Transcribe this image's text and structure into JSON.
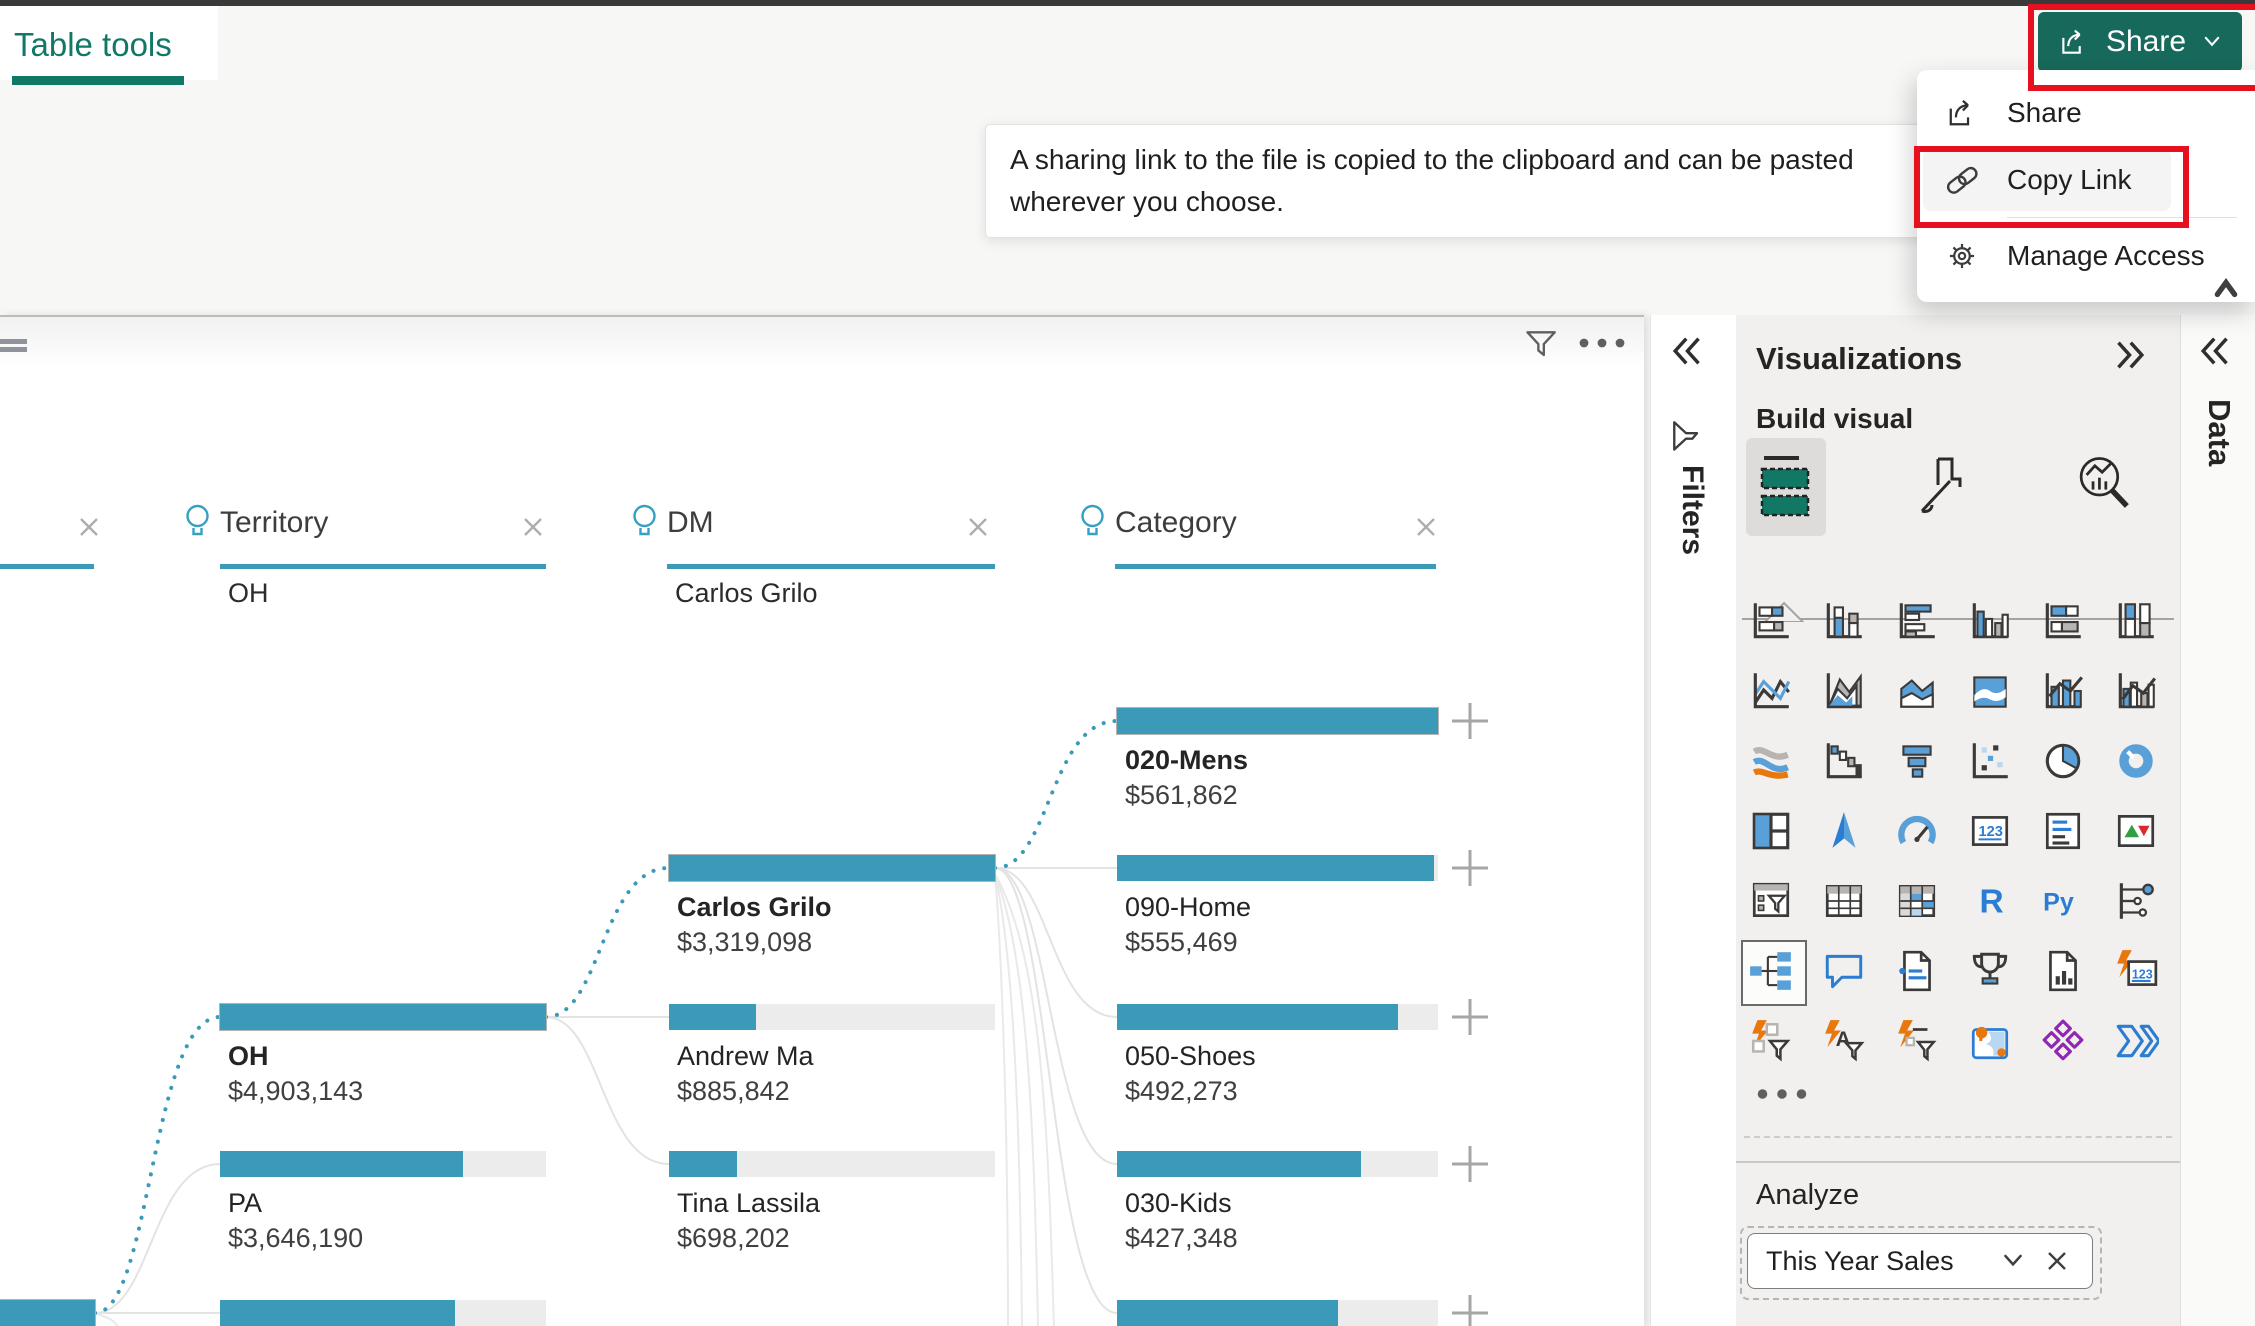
{
  "top_bar": {
    "active_tab": "Table tools"
  },
  "share": {
    "button_label": "Share",
    "menu_items": [
      {
        "icon": "share-icon",
        "label": "Share"
      },
      {
        "icon": "link-icon",
        "label": "Copy Link"
      },
      {
        "icon": "gear-icon",
        "label": "Manage Access"
      }
    ]
  },
  "tooltip": {
    "text": "A sharing link to the file is copied to the clipboard and can be pasted wherever you choose."
  },
  "colors": {
    "brand_green": "#117865",
    "accent_teal": "#3a9ab7",
    "annotation_red": "#e6101f",
    "bar_track": "#ececec"
  },
  "decomposition_tree": {
    "levels": [
      {
        "label": "Territory",
        "selected_value": "OH"
      },
      {
        "label": "DM",
        "selected_value": "Carlos Grilo"
      },
      {
        "label": "Category",
        "selected_value": ""
      }
    ],
    "root": {
      "label": "",
      "value": "",
      "fill": 1,
      "selected": true
    },
    "columns": [
      {
        "name": "territory",
        "nodes": [
          {
            "label": "OH",
            "value": "$4,903,143",
            "fill": 1,
            "selected": true
          },
          {
            "label": "PA",
            "value": "$3,646,190",
            "fill": 0.744,
            "selected": false
          },
          {
            "label": "",
            "value": "",
            "fill": 0.72,
            "selected": false
          }
        ]
      },
      {
        "name": "dm",
        "nodes": [
          {
            "label": "Carlos Grilo",
            "value": "$3,319,098",
            "fill": 1,
            "selected": true
          },
          {
            "label": "Andrew Ma",
            "value": "$885,842",
            "fill": 0.267,
            "selected": false
          },
          {
            "label": "Tina Lassila",
            "value": "$698,202",
            "fill": 0.21,
            "selected": false
          }
        ]
      },
      {
        "name": "category",
        "nodes": [
          {
            "label": "020-Mens",
            "value": "$561,862",
            "fill": 1,
            "selected": true
          },
          {
            "label": "090-Home",
            "value": "$555,469",
            "fill": 0.989,
            "selected": false
          },
          {
            "label": "050-Shoes",
            "value": "$492,273",
            "fill": 0.876,
            "selected": false
          },
          {
            "label": "030-Kids",
            "value": "$427,348",
            "fill": 0.76,
            "selected": false
          },
          {
            "label": "",
            "value": "",
            "fill": 0.69,
            "selected": false
          }
        ]
      }
    ]
  },
  "panels": {
    "filters_title": "Filters",
    "data_title": "Data",
    "visualizations": {
      "title": "Visualizations",
      "build_section": "Build visual",
      "analyze_section": "Analyze",
      "field_value": "This Year Sales",
      "selected_visual": "decomposition-tree",
      "icon_names": [
        "stacked-bar-chart",
        "stacked-column-chart",
        "clustered-bar-chart",
        "clustered-column-chart",
        "hundred-stacked-bar-chart",
        "hundred-stacked-column-chart",
        "line-chart",
        "area-chart",
        "stacked-area-chart",
        "hundred-stacked-area-chart",
        "line-and-stacked-column-chart",
        "line-and-clustered-column-chart",
        "ribbon-chart",
        "waterfall-chart",
        "funnel-chart",
        "scatter-chart",
        "pie-chart",
        "donut-chart",
        "treemap",
        "map",
        "gauge",
        "card",
        "multi-row-card",
        "kpi",
        "slicer",
        "table",
        "matrix",
        "r-script-visual",
        "python-visual",
        "key-influencers",
        "decomposition-tree",
        "qna-visual",
        "smart-narrative",
        "metrics",
        "paginated-report",
        "new-card",
        "new-slicer",
        "text-slicer",
        "button-slicer",
        "arcgis-map",
        "power-apps",
        "power-automate"
      ]
    }
  }
}
